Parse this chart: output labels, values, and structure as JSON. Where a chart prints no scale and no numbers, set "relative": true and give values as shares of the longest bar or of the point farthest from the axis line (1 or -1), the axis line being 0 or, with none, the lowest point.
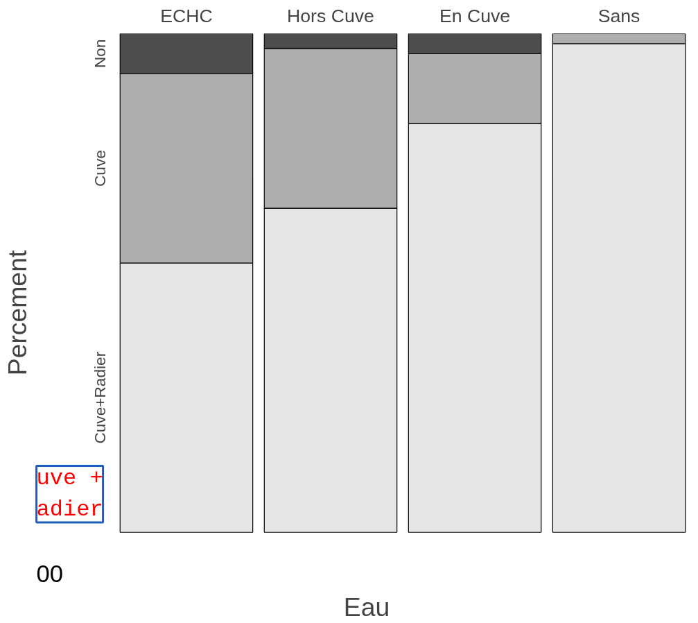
{
  "chart_data": {
    "type": "bar",
    "stacked": true,
    "relative": true,
    "xlabel": "Eau",
    "ylabel": "Percement",
    "categories": [
      "ECHC",
      "Hors Cuve",
      "En Cuve",
      "Sans"
    ],
    "series": [
      {
        "name": "Cuve+Radier",
        "color": "#e6e6e6",
        "values": [
          0.54,
          0.65,
          0.82,
          0.98
        ]
      },
      {
        "name": "Cuve",
        "color": "#aeaeae",
        "values": [
          0.38,
          0.32,
          0.14,
          0.02
        ]
      },
      {
        "name": "Non",
        "color": "#4d4d4d",
        "values": [
          0.08,
          0.03,
          0.04,
          0.0
        ]
      }
    ],
    "annotations": [
      "uve +\nadier",
      "00"
    ]
  }
}
